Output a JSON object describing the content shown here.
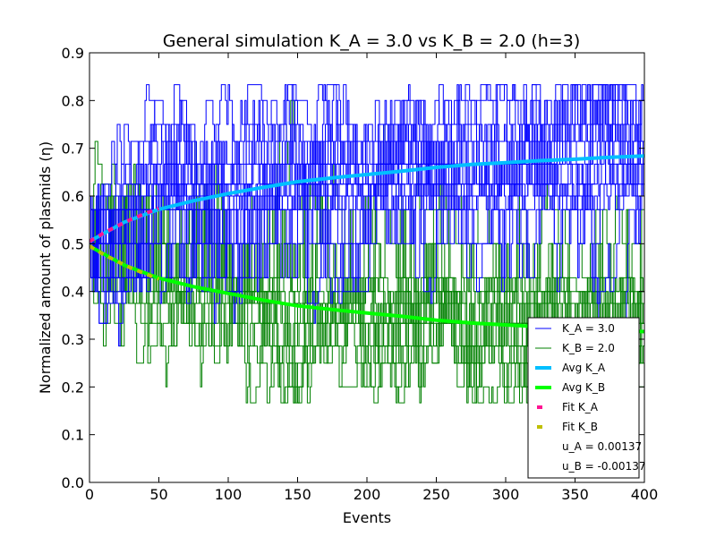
{
  "chart_data": {
    "type": "line",
    "title": "General simulation K_A = 3.0 vs K_B = 2.0 (h=3)",
    "xlabel": "Events",
    "ylabel": "Normalized amount of plasmids (η)",
    "xlim": [
      0,
      400
    ],
    "ylim": [
      0.0,
      0.9
    ],
    "x_ticks": [
      "0",
      "50",
      "100",
      "150",
      "200",
      "250",
      "300",
      "350",
      "400"
    ],
    "y_ticks": [
      "0.0",
      "0.1",
      "0.2",
      "0.3",
      "0.4",
      "0.5",
      "0.6",
      "0.7",
      "0.8",
      "0.9"
    ],
    "grid": false,
    "legend_position": "lower-right",
    "simulation_levels": [
      0.1667,
      0.2,
      0.25,
      0.2857,
      0.3333,
      0.375,
      0.4,
      0.4286,
      0.5,
      0.5714,
      0.6,
      0.625,
      0.6667,
      0.7143,
      0.75,
      0.8,
      0.8333
    ],
    "series": [
      {
        "name": "K_A = 3.0",
        "role": "simulation_traces",
        "color": "#0000ff",
        "start": 0.5,
        "range": [
          0.1667,
          0.8333
        ]
      },
      {
        "name": "K_B = 2.0",
        "role": "simulation_traces",
        "color": "#008000",
        "start": 0.5,
        "range": [
          0.1667,
          0.8333
        ]
      },
      {
        "name": "Avg K_A",
        "role": "average",
        "color": "#00bfff",
        "x": [
          0,
          25,
          50,
          75,
          100,
          125,
          150,
          175,
          200,
          225,
          250,
          275,
          300,
          325,
          350,
          375,
          400
        ],
        "values": [
          0.505,
          0.545,
          0.572,
          0.59,
          0.605,
          0.618,
          0.63,
          0.638,
          0.645,
          0.652,
          0.66,
          0.666,
          0.67,
          0.674,
          0.677,
          0.681,
          0.684
        ]
      },
      {
        "name": "Avg K_B",
        "role": "average",
        "color": "#00ff00",
        "x": [
          0,
          25,
          50,
          75,
          100,
          125,
          150,
          175,
          200,
          225,
          250,
          275,
          300,
          325,
          350,
          375,
          400
        ],
        "values": [
          0.495,
          0.455,
          0.428,
          0.41,
          0.396,
          0.382,
          0.37,
          0.362,
          0.355,
          0.348,
          0.34,
          0.334,
          0.33,
          0.326,
          0.323,
          0.319,
          0.316
        ]
      },
      {
        "name": "Fit K_A",
        "role": "fit",
        "color": "#ff1493",
        "x": [
          0,
          10,
          20,
          30,
          40,
          50
        ],
        "values": [
          0.505,
          0.522,
          0.537,
          0.551,
          0.563,
          0.574
        ]
      },
      {
        "name": "Fit K_B",
        "role": "fit",
        "color": "#bfbf00",
        "x": [
          0,
          10,
          20,
          30,
          40,
          50
        ],
        "values": [
          0.495,
          0.478,
          0.463,
          0.449,
          0.437,
          0.426
        ]
      }
    ],
    "legend": [
      {
        "label": "K_A = 3.0",
        "style": "thin",
        "color": "#0000ff"
      },
      {
        "label": "K_B = 2.0",
        "style": "thin",
        "color": "#008000"
      },
      {
        "label": "Avg K_A",
        "style": "thick",
        "color": "#00bfff"
      },
      {
        "label": "Avg K_B",
        "style": "thick",
        "color": "#00ff00"
      },
      {
        "label": "Fit K_A",
        "style": "dash",
        "color": "#ff1493"
      },
      {
        "label": "Fit K_B",
        "style": "dash",
        "color": "#bfbf00"
      },
      {
        "label": "u_A = 0.00137",
        "style": "none",
        "color": ""
      },
      {
        "label": "u_B = -0.00137",
        "style": "none",
        "color": ""
      }
    ]
  }
}
